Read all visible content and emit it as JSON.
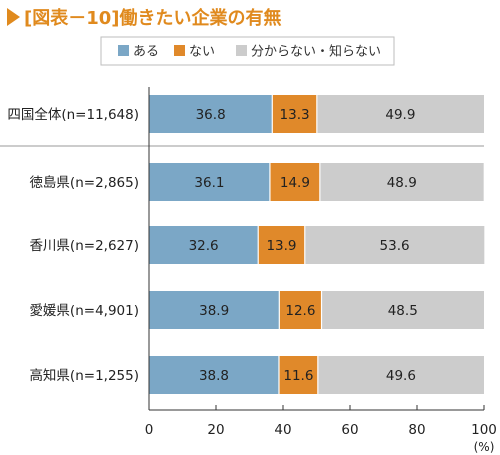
{
  "chart_data": {
    "type": "bar",
    "orientation": "horizontal",
    "stacked": true,
    "title": "[図表－10]働きたい企業の有無",
    "categories": [
      "四国全体(n=11,648)",
      "徳島県(n=2,865)",
      "香川県(n=2,627)",
      "愛媛県(n=4,901)",
      "高知県(n=1,255)"
    ],
    "series": [
      {
        "name": "ある",
        "color": "#7ba7c6",
        "values": [
          36.8,
          36.1,
          32.6,
          38.9,
          38.8
        ]
      },
      {
        "name": "ない",
        "color": "#e0892a",
        "values": [
          13.3,
          14.9,
          13.9,
          12.6,
          11.6
        ]
      },
      {
        "name": "分からない・知らない",
        "color": "#cccccc",
        "values": [
          49.9,
          48.9,
          53.6,
          48.5,
          49.6
        ]
      }
    ],
    "xlim": [
      0,
      100
    ],
    "xticks": [
      "0",
      "20",
      "40",
      "60",
      "80",
      "100"
    ],
    "xunit": "(%)",
    "legend": "top-center",
    "grid": false
  }
}
